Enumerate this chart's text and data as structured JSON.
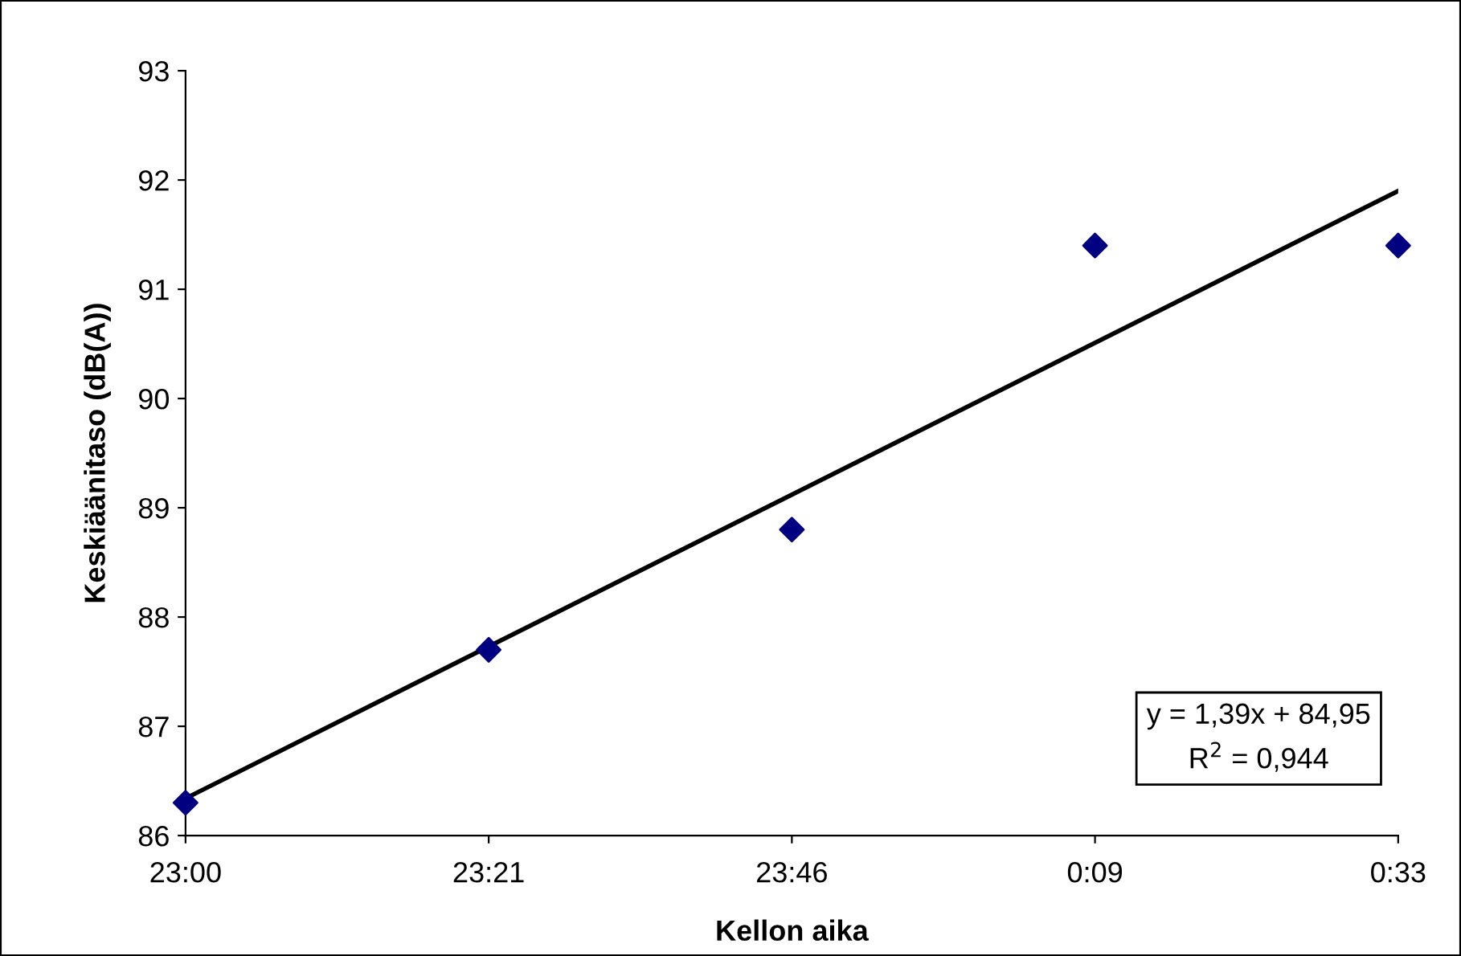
{
  "chart_data": {
    "type": "scatter",
    "xlabel": "Kellon aika",
    "ylabel": "Keskiäänitaso (dB(A))",
    "categories": [
      "23:00",
      "23:21",
      "23:46",
      "0:09",
      "0:33"
    ],
    "series": [
      {
        "color": "#000080",
        "marker": "diamond",
        "values": [
          86.3,
          87.7,
          88.8,
          91.4,
          91.4
        ]
      },
      {
        "type": "line",
        "color": "#000000",
        "marker": "none",
        "line_style": "solid",
        "values": [
          86.34,
          87.73,
          89.12,
          90.51,
          91.9
        ]
      }
    ],
    "ylim": [
      86,
      93
    ],
    "yticks": [
      86,
      87,
      88,
      89,
      90,
      91,
      92,
      93
    ],
    "grid": false,
    "legend": false,
    "annotations": [
      "y = 1,39x + 84,95\nR$^{2}$ = 0,944"
    ]
  }
}
